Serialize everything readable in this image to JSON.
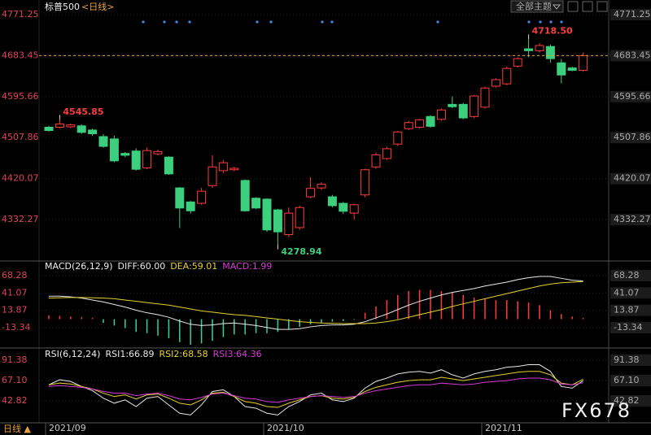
{
  "ui": {
    "theme_button": "全部主题",
    "period": "日线 ▲",
    "watermark": "FX678"
  },
  "chart_data": [
    {
      "type": "candlestick",
      "title": "标普500",
      "subtitle": "<日线>",
      "categories": [
        "2021/09",
        null,
        null,
        null,
        null,
        null,
        null,
        null,
        null,
        null,
        null,
        null,
        null,
        null,
        null,
        null,
        null,
        null,
        null,
        null,
        "2021/10",
        null,
        null,
        null,
        null,
        null,
        null,
        null,
        null,
        null,
        null,
        null,
        null,
        null,
        null,
        null,
        null,
        null,
        null,
        null,
        "2021/11",
        null,
        null,
        null,
        null,
        null,
        null,
        null,
        null,
        null
      ],
      "open": [
        4530,
        4530,
        4531,
        4533,
        4524,
        4510,
        4505,
        4474,
        4479,
        4443,
        4473,
        4466,
        4400,
        4370,
        4367,
        4405,
        4437,
        4439,
        4416,
        4378,
        4376,
        4353,
        4300,
        4315,
        4381,
        4400,
        4381,
        4367,
        4346,
        4385,
        4445,
        4463,
        4494,
        4527,
        4530,
        4553,
        4547,
        4579,
        4579,
        4553,
        4573,
        4618,
        4623,
        4661,
        4698,
        4694,
        4703,
        4668,
        4657,
        4652
      ],
      "high": [
        4533,
        4545.85,
        4538,
        4536,
        4527,
        4515,
        4512,
        4477,
        4485,
        4487,
        4482,
        4468,
        4402,
        4372,
        4400,
        4470,
        4460,
        4445,
        4418,
        4380,
        4378,
        4355,
        4358,
        4362,
        4423,
        4412,
        4385,
        4370,
        4366,
        4441,
        4476,
        4488,
        4522,
        4543,
        4548,
        4556,
        4570,
        4596,
        4582,
        4599,
        4617,
        4635,
        4660,
        4680,
        4718.5,
        4710,
        4707,
        4676,
        4660,
        4690
      ],
      "low": [
        4521,
        4527,
        4528,
        4516,
        4512,
        4486,
        4455,
        4466,
        4437,
        4440,
        4470,
        4428,
        4314,
        4345,
        4364,
        4400,
        4432,
        4436,
        4349,
        4355,
        4306,
        4278.94,
        4295,
        4310,
        4378,
        4396,
        4358,
        4344,
        4332,
        4380,
        4441,
        4460,
        4490,
        4524,
        4527,
        4529,
        4544,
        4571,
        4547,
        4550,
        4570,
        4615,
        4620,
        4658,
        4680,
        4690,
        4668,
        4624,
        4650,
        4649
      ],
      "close": [
        4523,
        4537,
        4535,
        4519,
        4516,
        4489,
        4458,
        4470,
        4440,
        4480,
        4478,
        4430,
        4357,
        4351,
        4393,
        4445,
        4454,
        4442,
        4351,
        4357,
        4310,
        4306,
        4346,
        4358,
        4399,
        4408,
        4362,
        4350,
        4364,
        4439,
        4471,
        4484,
        4520,
        4540,
        4546,
        4532,
        4567,
        4574,
        4550,
        4597,
        4614,
        4632,
        4656,
        4677,
        4694,
        4705,
        4677,
        4642,
        4652,
        4683.45
      ],
      "up_color": "#ff3b3b",
      "down_color": "#3ccf7e",
      "ylim": [
        4245.2,
        4771.25
      ],
      "yticks": [
        4771.25,
        4683.45,
        4595.66,
        4507.86,
        4420.07,
        4332.27
      ],
      "grid": true,
      "annotations": [
        {
          "label": "4545.85",
          "value": 4545.85
        },
        {
          "label": "4718.50",
          "value": 4718.5
        },
        {
          "label": "4278.94",
          "value": 4278.94
        }
      ]
    },
    {
      "type": "macd",
      "title": "MACD(26,12,9)",
      "series": [
        {
          "name": "DIFF:60.00",
          "color": "#e8e8e8",
          "values": [
            36,
            36,
            35,
            33,
            30,
            27,
            23,
            19,
            14,
            10,
            7,
            3,
            -3,
            -8,
            -10,
            -9,
            -7,
            -6,
            -8,
            -10,
            -13,
            -16,
            -16,
            -15,
            -12,
            -10,
            -9,
            -9,
            -8,
            -4,
            2,
            8,
            15,
            22,
            28,
            33,
            38,
            42,
            45,
            48,
            52,
            55,
            58,
            62,
            65,
            67,
            67,
            64,
            61,
            60
          ]
        },
        {
          "name": "DEA:59.01",
          "color": "#e6d22e",
          "values": [
            33,
            33.5,
            34,
            34,
            33.5,
            33,
            32,
            30,
            28,
            26,
            24,
            22,
            19,
            16,
            13,
            11,
            9,
            7,
            6,
            4,
            2,
            0,
            -2,
            -4,
            -5,
            -6,
            -6.5,
            -7,
            -7,
            -7,
            -6,
            -4,
            -1,
            3,
            7,
            11,
            15,
            20,
            24,
            28,
            32,
            36,
            40,
            44,
            48,
            52,
            55,
            57,
            58,
            59.01
          ]
        },
        {
          "name": "MACD:1.99",
          "color": "#d63ad6",
          "type": "bar",
          "values": [
            6,
            5,
            4,
            3,
            2,
            -6,
            -10,
            -14,
            -20,
            -22,
            -26,
            -30,
            -36,
            -40,
            -38,
            -34,
            -28,
            -24,
            -24,
            -22,
            -22,
            -20,
            -16,
            -12,
            -8,
            -6,
            -4,
            -3,
            -1,
            10,
            20,
            30,
            38,
            44,
            46,
            46,
            44,
            42,
            38,
            34,
            32,
            30,
            30,
            28,
            26,
            22,
            14,
            8,
            4,
            1.99
          ]
        }
      ],
      "up_color": "#ff3b3b",
      "down_color": "#3ccf9e",
      "ylim": [
        -41.4,
        89.9
      ],
      "yticks": [
        68.28,
        41.07,
        13.87,
        -13.34
      ]
    },
    {
      "type": "line",
      "title": "RSI(6,12,24)",
      "series": [
        {
          "name": "RSI1:66.89",
          "color": "#e8e8e8",
          "values": [
            62,
            68,
            66,
            60,
            55,
            46,
            40,
            44,
            36,
            46,
            48,
            38,
            28,
            26,
            38,
            54,
            56,
            48,
            36,
            34,
            28,
            26,
            36,
            42,
            50,
            52,
            44,
            42,
            46,
            58,
            66,
            70,
            75,
            77,
            78,
            76,
            80,
            74,
            70,
            75,
            78,
            80,
            83,
            84,
            86,
            86,
            78,
            60,
            58,
            66.89
          ]
        },
        {
          "name": "RSI2:68.58",
          "color": "#e6d22e",
          "values": [
            62,
            64,
            63,
            60,
            57,
            52,
            48,
            50,
            45,
            50,
            51,
            46,
            40,
            38,
            44,
            52,
            53,
            48,
            42,
            40,
            36,
            35,
            40,
            44,
            48,
            49,
            46,
            45,
            47,
            54,
            59,
            62,
            65,
            67,
            68,
            68,
            71,
            69,
            67,
            69,
            71,
            73,
            75,
            77,
            78,
            78,
            74,
            64,
            62,
            68.58
          ]
        },
        {
          "name": "RSI3:64.36",
          "color": "#d63ad6",
          "values": [
            60,
            61,
            60,
            59,
            57,
            54,
            52,
            52,
            49,
            51,
            52,
            49,
            45,
            44,
            47,
            51,
            52,
            49,
            46,
            45,
            42,
            41,
            44,
            46,
            48,
            49,
            48,
            47,
            48,
            52,
            55,
            57,
            59,
            61,
            62,
            62,
            64,
            63,
            62,
            63,
            65,
            66,
            67,
            69,
            70,
            70,
            68,
            63,
            62,
            64.36
          ]
        }
      ],
      "ylim": [
        16.6,
        104
      ],
      "yticks": [
        91.38,
        {
          "value": 67.1,
          "label": "67.10"
        },
        42.82
      ]
    }
  ]
}
